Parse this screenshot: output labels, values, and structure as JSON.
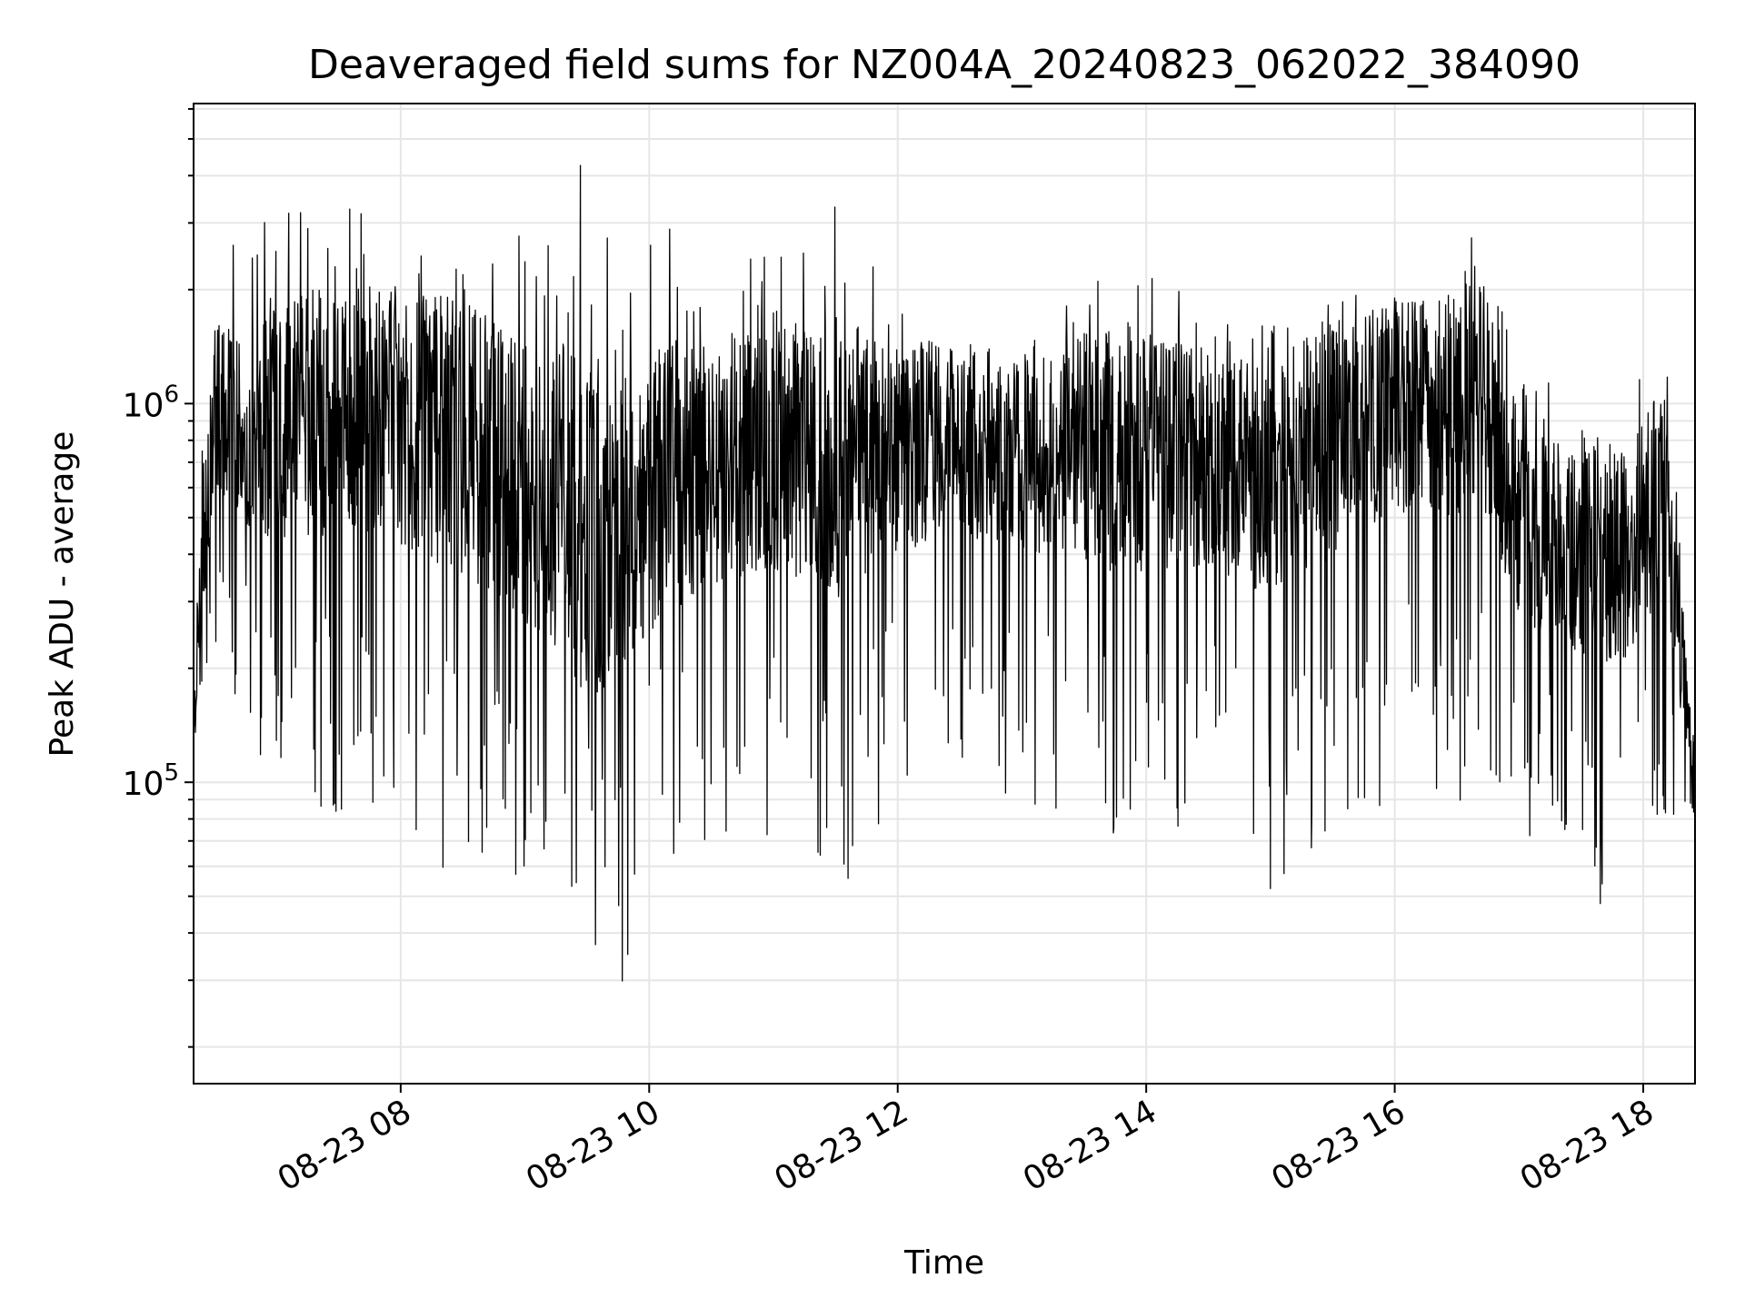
{
  "chart_data": {
    "type": "line",
    "title": "Deaveraged field sums for NZ004A_20240823_062022_384090",
    "xlabel": "Time",
    "ylabel": "Peak ADU - average",
    "yscale": "log",
    "grid": true,
    "legend": "none",
    "xlim": [
      "2024-08-23 06:20",
      "2024-08-23 18:25"
    ],
    "ylim": [
      16000,
      6200000
    ],
    "x_ticks": [
      {
        "value": "2024-08-23 08:00",
        "label": "08-23 08"
      },
      {
        "value": "2024-08-23 10:00",
        "label": "08-23 10"
      },
      {
        "value": "2024-08-23 12:00",
        "label": "08-23 12"
      },
      {
        "value": "2024-08-23 14:00",
        "label": "08-23 14"
      },
      {
        "value": "2024-08-23 16:00",
        "label": "08-23 16"
      },
      {
        "value": "2024-08-23 18:00",
        "label": "08-23 18"
      }
    ],
    "y_ticks": [
      {
        "value": 100000,
        "base": "10",
        "exp": "5"
      },
      {
        "value": 1000000,
        "base": "10",
        "exp": "6"
      }
    ],
    "series": [
      {
        "color": "#000000",
        "envelope": [
          {
            "x": "2024-08-23 06:20",
            "low": 70000,
            "typ": 150000,
            "high": 400000
          },
          {
            "x": "2024-08-23 06:30",
            "low": 200000,
            "typ": 1000000,
            "high": 2400000
          },
          {
            "x": "2024-08-23 06:50",
            "low": 100000,
            "typ": 900000,
            "high": 3200000
          },
          {
            "x": "2024-08-23 07:20",
            "low": 60000,
            "typ": 950000,
            "high": 3700000
          },
          {
            "x": "2024-08-23 07:50",
            "low": 80000,
            "typ": 950000,
            "high": 3100000
          },
          {
            "x": "2024-08-23 08:30",
            "low": 40000,
            "typ": 800000,
            "high": 3300000
          },
          {
            "x": "2024-08-23 09:00",
            "low": 40000,
            "typ": 600000,
            "high": 3000000
          },
          {
            "x": "2024-08-23 09:30",
            "low": 25000,
            "typ": 500000,
            "high": 5500000
          },
          {
            "x": "2024-08-23 09:45",
            "low": 19000,
            "typ": 450000,
            "high": 2000000
          },
          {
            "x": "2024-08-23 10:00",
            "low": 50000,
            "typ": 600000,
            "high": 4500000
          },
          {
            "x": "2024-08-23 10:30",
            "low": 60000,
            "typ": 700000,
            "high": 2400000
          },
          {
            "x": "2024-08-23 11:00",
            "low": 60000,
            "typ": 750000,
            "high": 2600000
          },
          {
            "x": "2024-08-23 11:30",
            "low": 42000,
            "typ": 700000,
            "high": 3600000
          },
          {
            "x": "2024-08-23 12:00",
            "low": 80000,
            "typ": 750000,
            "high": 1800000
          },
          {
            "x": "2024-08-23 12:30",
            "low": 90000,
            "typ": 800000,
            "high": 1700000
          },
          {
            "x": "2024-08-23 13:00",
            "low": 80000,
            "typ": 750000,
            "high": 1500000
          },
          {
            "x": "2024-08-23 13:30",
            "low": 60000,
            "typ": 750000,
            "high": 2300000
          },
          {
            "x": "2024-08-23 14:00",
            "low": 60000,
            "typ": 750000,
            "high": 2300000
          },
          {
            "x": "2024-08-23 14:30",
            "low": 70000,
            "typ": 700000,
            "high": 1800000
          },
          {
            "x": "2024-08-23 15:00",
            "low": 40000,
            "typ": 650000,
            "high": 1600000
          },
          {
            "x": "2024-08-23 15:30",
            "low": 60000,
            "typ": 800000,
            "high": 2100000
          },
          {
            "x": "2024-08-23 16:00",
            "low": 70000,
            "typ": 1000000,
            "high": 1900000
          },
          {
            "x": "2024-08-23 16:30",
            "low": 70000,
            "typ": 1000000,
            "high": 2100000
          },
          {
            "x": "2024-08-23 16:40",
            "low": 100000,
            "typ": 1200000,
            "high": 3200000
          },
          {
            "x": "2024-08-23 17:00",
            "low": 60000,
            "typ": 500000,
            "high": 1300000
          },
          {
            "x": "2024-08-23 17:30",
            "low": 50000,
            "typ": 400000,
            "high": 1000000
          },
          {
            "x": "2024-08-23 17:50",
            "low": 32000,
            "typ": 400000,
            "high": 1000000
          },
          {
            "x": "2024-08-23 18:10",
            "low": 70000,
            "typ": 600000,
            "high": 1500000
          },
          {
            "x": "2024-08-23 18:25",
            "low": 75000,
            "typ": 100000,
            "high": 200000
          }
        ]
      }
    ]
  }
}
